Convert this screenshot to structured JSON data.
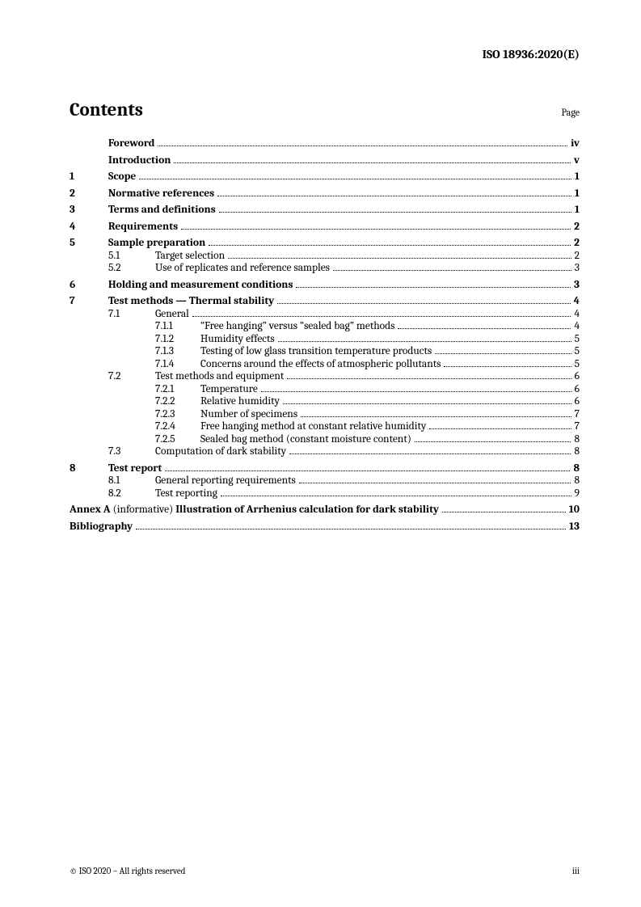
{
  "doc_id": "ISO 18936:2020(E)",
  "contents_title": "Contents",
  "page_label": "Page",
  "footer_left": "© ISO 2020 – All rights reserved",
  "footer_right": "iii",
  "annex_prefix_bold": "Annex A",
  "annex_informative": " (informative) ",
  "annex_title_bold": "Illustration of Arrhenius calculation for dark stability",
  "annex_page": "10",
  "toc": [
    {
      "level": 0,
      "num": "",
      "title": "Foreword",
      "page": "iv",
      "bold": true,
      "gap": false
    },
    {
      "level": 0,
      "num": "",
      "title": "Introduction",
      "page": "v",
      "bold": true,
      "gap": true
    },
    {
      "level": 0,
      "num": "1",
      "title": "Scope",
      "page": "1",
      "bold": true,
      "gap": true
    },
    {
      "level": 0,
      "num": "2",
      "title": "Normative references",
      "page": "1",
      "bold": true,
      "gap": true
    },
    {
      "level": 0,
      "num": "3",
      "title": "Terms and definitions",
      "page": "1",
      "bold": true,
      "gap": true
    },
    {
      "level": 0,
      "num": "4",
      "title": "Requirements",
      "page": "2",
      "bold": true,
      "gap": true
    },
    {
      "level": 0,
      "num": "5",
      "title": "Sample preparation",
      "page": "2",
      "bold": true,
      "gap": true
    },
    {
      "level": 1,
      "num": "5.1",
      "title": "Target selection",
      "page": "2",
      "bold": false,
      "gap": false
    },
    {
      "level": 1,
      "num": "5.2",
      "title": "Use of replicates and reference samples",
      "page": "3",
      "bold": false,
      "gap": false
    },
    {
      "level": 0,
      "num": "6",
      "title": "Holding and measurement conditions",
      "page": "3",
      "bold": true,
      "gap": true
    },
    {
      "level": 0,
      "num": "7",
      "title": "Test methods — Thermal stability",
      "page": "4",
      "bold": true,
      "gap": true
    },
    {
      "level": 1,
      "num": "7.1",
      "title": "General",
      "page": "4",
      "bold": false,
      "gap": false
    },
    {
      "level": 2,
      "num": "7.1.1",
      "title": "“Free hanging” versus “sealed bag” methods",
      "page": "4",
      "bold": false,
      "gap": false
    },
    {
      "level": 2,
      "num": "7.1.2",
      "title": "Humidity effects",
      "page": "5",
      "bold": false,
      "gap": false
    },
    {
      "level": 2,
      "num": "7.1.3",
      "title": "Testing of low glass transition temperature products",
      "page": "5",
      "bold": false,
      "gap": false
    },
    {
      "level": 2,
      "num": "7.1.4",
      "title": "Concerns around the effects of atmospheric pollutants",
      "page": "5",
      "bold": false,
      "gap": false
    },
    {
      "level": 1,
      "num": "7.2",
      "title": "Test methods and equipment",
      "page": "6",
      "bold": false,
      "gap": false
    },
    {
      "level": 2,
      "num": "7.2.1",
      "title": "Temperature",
      "page": "6",
      "bold": false,
      "gap": false
    },
    {
      "level": 2,
      "num": "7.2.2",
      "title": "Relative humidity",
      "page": "6",
      "bold": false,
      "gap": false
    },
    {
      "level": 2,
      "num": "7.2.3",
      "title": "Number of specimens",
      "page": "7",
      "bold": false,
      "gap": false
    },
    {
      "level": 2,
      "num": "7.2.4",
      "title": "Free hanging method at constant relative humidity",
      "page": "7",
      "bold": false,
      "gap": false
    },
    {
      "level": 2,
      "num": "7.2.5",
      "title": "Sealed bag method (constant moisture content)",
      "page": "8",
      "bold": false,
      "gap": false
    },
    {
      "level": 1,
      "num": "7.3",
      "title": "Computation of dark stability",
      "page": "8",
      "bold": false,
      "gap": false
    },
    {
      "level": 0,
      "num": "8",
      "title": "Test report",
      "page": "8",
      "bold": true,
      "gap": true
    },
    {
      "level": 1,
      "num": "8.1",
      "title": "General reporting requirements",
      "page": "8",
      "bold": false,
      "gap": false
    },
    {
      "level": 1,
      "num": "8.2",
      "title": "Test reporting",
      "page": "9",
      "bold": false,
      "gap": false
    }
  ],
  "bibliography_title": "Bibliography",
  "bibliography_page": "13"
}
